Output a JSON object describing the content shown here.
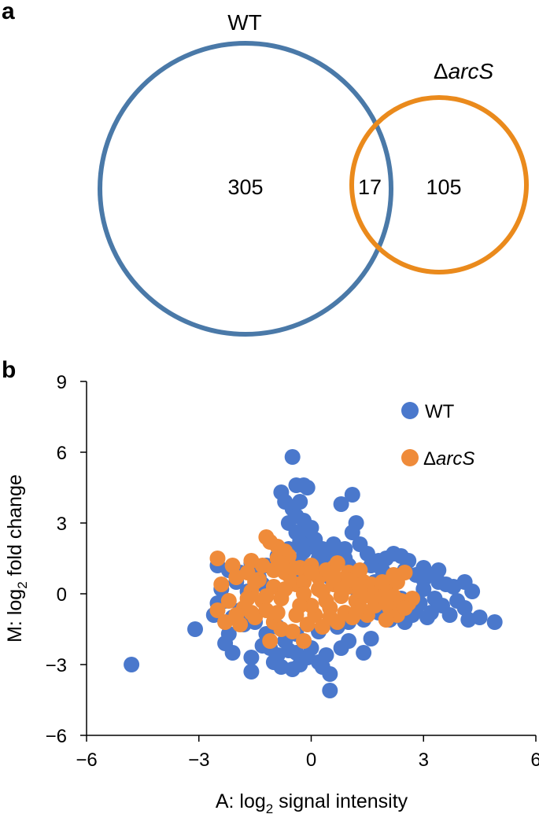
{
  "panel_a": {
    "label": "a",
    "sets": [
      {
        "name": "WT",
        "color": "#4a79a8"
      },
      {
        "name_prefix": "Δ",
        "name_italic": "arcS",
        "color": "#ea8a1c"
      }
    ],
    "only_wt": "305",
    "overlap": "17",
    "only_arcs": "105"
  },
  "panel_b": {
    "label": "b"
  },
  "chart_data": {
    "type": "scatter",
    "title": "",
    "xlabel_main": "A: log",
    "xlabel_sub": "2",
    "xlabel_rest": " signal intensity",
    "ylabel_main": "M: log",
    "ylabel_sub": "2",
    "ylabel_rest": " fold change",
    "xlim": [
      -6,
      6
    ],
    "ylim": [
      -6,
      9
    ],
    "xticks": [
      -6,
      -3,
      0,
      3,
      6
    ],
    "xtick_labels": [
      "−6",
      "−3",
      "0",
      "3",
      "6"
    ],
    "yticks": [
      -6,
      -3,
      0,
      3,
      6,
      9
    ],
    "ytick_labels": [
      "−6",
      "−3",
      "0",
      "3",
      "6",
      "9"
    ],
    "legend": "top-right",
    "series": [
      {
        "name": "WT",
        "color": "#4a78cc",
        "points": [
          [
            -4.8,
            -3.0
          ],
          [
            -3.1,
            -1.5
          ],
          [
            -2.5,
            1.2
          ],
          [
            -2.3,
            -2.1
          ],
          [
            -2.2,
            -1.7
          ],
          [
            -2.1,
            -2.5
          ],
          [
            -1.9,
            0.9
          ],
          [
            -1.8,
            -1.3
          ],
          [
            -1.6,
            -2.7
          ],
          [
            -1.6,
            -3.3
          ],
          [
            -1.4,
            0.7
          ],
          [
            -1.3,
            -2.2
          ],
          [
            -1.2,
            -1.7
          ],
          [
            -1.1,
            -2.3
          ],
          [
            -1.0,
            -2.9
          ],
          [
            -0.9,
            -2.6
          ],
          [
            -0.8,
            -3.1
          ],
          [
            -0.7,
            -2.0
          ],
          [
            -0.6,
            -2.4
          ],
          [
            -0.5,
            -3.2
          ],
          [
            -0.4,
            -2.5
          ],
          [
            -0.3,
            -3.0
          ],
          [
            -0.2,
            -2.0
          ],
          [
            -0.1,
            -2.7
          ],
          [
            0.0,
            -2.3
          ],
          [
            0.2,
            -2.9
          ],
          [
            0.3,
            -3.1
          ],
          [
            0.5,
            -3.4
          ],
          [
            0.5,
            -4.1
          ],
          [
            0.4,
            -2.6
          ],
          [
            0.8,
            -2.3
          ],
          [
            1.0,
            -2.0
          ],
          [
            1.4,
            -2.5
          ],
          [
            1.6,
            -1.9
          ],
          [
            -0.5,
            5.8
          ],
          [
            -0.4,
            4.6
          ],
          [
            -0.2,
            4.6
          ],
          [
            -0.1,
            4.5
          ],
          [
            -0.8,
            4.3
          ],
          [
            -0.7,
            3.9
          ],
          [
            -0.3,
            3.9
          ],
          [
            -0.5,
            3.6
          ],
          [
            -0.4,
            3.3
          ],
          [
            -0.2,
            3.1
          ],
          [
            -0.6,
            3.0
          ],
          [
            0.0,
            2.8
          ],
          [
            -0.4,
            2.6
          ],
          [
            -0.1,
            2.5
          ],
          [
            0.1,
            2.3
          ],
          [
            -0.3,
            2.2
          ],
          [
            0.0,
            2.0
          ],
          [
            1.1,
            4.2
          ],
          [
            0.8,
            3.8
          ],
          [
            1.2,
            3.0
          ],
          [
            1.1,
            2.6
          ],
          [
            1.3,
            2.1
          ],
          [
            0.9,
            1.9
          ],
          [
            1.5,
            1.7
          ],
          [
            0.6,
            1.6
          ],
          [
            0.2,
            1.5
          ],
          [
            0.6,
            2.1
          ],
          [
            0.3,
            1.9
          ],
          [
            -0.2,
            1.8
          ],
          [
            -0.6,
            1.9
          ],
          [
            -0.9,
            1.6
          ],
          [
            -1.2,
            1.2
          ],
          [
            -1.5,
            1.0
          ],
          [
            -2.0,
            0.5
          ],
          [
            -2.4,
            0.2
          ],
          [
            -2.5,
            -0.4
          ],
          [
            -2.6,
            -0.9
          ],
          [
            -2.1,
            -1.0
          ],
          [
            -1.7,
            0.1
          ],
          [
            -1.3,
            0.4
          ],
          [
            -0.5,
            0.8
          ],
          [
            0.5,
            0.7
          ],
          [
            1.0,
            1.2
          ],
          [
            1.6,
            1.2
          ],
          [
            1.8,
            1.4
          ],
          [
            2.0,
            1.5
          ],
          [
            2.2,
            1.7
          ],
          [
            2.4,
            1.6
          ],
          [
            2.6,
            1.4
          ],
          [
            2.5,
            1.0
          ],
          [
            2.8,
            0.8
          ],
          [
            3.0,
            0.6
          ],
          [
            3.2,
            0.8
          ],
          [
            3.4,
            0.5
          ],
          [
            3.0,
            0.2
          ],
          [
            3.6,
            0.4
          ],
          [
            3.8,
            0.3
          ],
          [
            4.1,
            0.5
          ],
          [
            4.3,
            0.1
          ],
          [
            3.3,
            -0.2
          ],
          [
            3.5,
            -0.5
          ],
          [
            3.9,
            -0.3
          ],
          [
            4.1,
            -0.6
          ],
          [
            4.2,
            -1.1
          ],
          [
            3.7,
            -0.9
          ],
          [
            3.2,
            -0.8
          ],
          [
            2.9,
            -0.4
          ],
          [
            2.7,
            -0.9
          ],
          [
            2.4,
            -0.2
          ],
          [
            2.2,
            -0.5
          ],
          [
            2.0,
            -0.1
          ],
          [
            1.8,
            -0.8
          ],
          [
            2.1,
            -1.1
          ],
          [
            2.5,
            -1.2
          ],
          [
            2.8,
            -0.6
          ],
          [
            3.1,
            -1.0
          ],
          [
            4.9,
            -1.2
          ],
          [
            4.5,
            -1.0
          ],
          [
            3.4,
            1.0
          ],
          [
            3.0,
            1.1
          ],
          [
            2.0,
            0.8
          ],
          [
            1.7,
            0.5
          ],
          [
            1.2,
            0.2
          ],
          [
            1.4,
            -1.1
          ],
          [
            1.0,
            -1.2
          ],
          [
            0.7,
            -1.4
          ],
          [
            0.2,
            -1.6
          ],
          [
            -0.4,
            -1.7
          ],
          [
            -0.9,
            -1.4
          ],
          [
            -1.5,
            -1.2
          ],
          [
            -1.9,
            -0.7
          ],
          [
            -2.3,
            -0.3
          ],
          [
            -2.2,
            1.0
          ],
          [
            -1.6,
            1.3
          ],
          [
            0.3,
            1.3
          ],
          [
            -0.3,
            1.4
          ],
          [
            0.9,
            1.5
          ],
          [
            1.9,
            1.0
          ]
        ]
      },
      {
        "name_prefix": "Δ",
        "name_italic": "arcS",
        "color": "#ef8b3a",
        "points": [
          [
            -2.5,
            -0.7
          ],
          [
            -2.5,
            1.5
          ],
          [
            -2.3,
            -1.2
          ],
          [
            -2.1,
            1.2
          ],
          [
            -1.9,
            -1.3
          ],
          [
            -1.7,
            0.9
          ],
          [
            -1.6,
            1.4
          ],
          [
            -1.5,
            -1.0
          ],
          [
            -1.3,
            -0.3
          ],
          [
            -1.3,
            1.2
          ],
          [
            -1.2,
            2.4
          ],
          [
            -1.1,
            -2.0
          ],
          [
            -1.0,
            -1.2
          ],
          [
            -0.9,
            1.5
          ],
          [
            -0.8,
            -1.5
          ],
          [
            -0.7,
            0.9
          ],
          [
            -0.6,
            1.6
          ],
          [
            -0.5,
            -1.6
          ],
          [
            -0.4,
            0.4
          ],
          [
            -0.3,
            1.1
          ],
          [
            -0.2,
            -2.0
          ],
          [
            -0.1,
            -1.3
          ],
          [
            0.0,
            1.2
          ],
          [
            0.1,
            -0.9
          ],
          [
            0.2,
            0.7
          ],
          [
            0.3,
            -1.4
          ],
          [
            0.4,
            1.0
          ],
          [
            0.5,
            -0.6
          ],
          [
            0.6,
            1.1
          ],
          [
            0.7,
            -1.2
          ],
          [
            0.8,
            0.6
          ],
          [
            0.9,
            -0.8
          ],
          [
            1.0,
            0.9
          ],
          [
            1.1,
            -1.0
          ],
          [
            1.2,
            0.7
          ],
          [
            1.3,
            -0.6
          ],
          [
            1.4,
            0.5
          ],
          [
            1.5,
            -0.9
          ],
          [
            1.6,
            0.4
          ],
          [
            1.7,
            -0.5
          ],
          [
            1.8,
            0.3
          ],
          [
            1.9,
            -0.2
          ],
          [
            2.0,
            0.2
          ],
          [
            2.1,
            -0.6
          ],
          [
            2.2,
            -0.1
          ],
          [
            2.3,
            -0.9
          ],
          [
            2.4,
            -0.3
          ],
          [
            2.5,
            0.9
          ],
          [
            2.6,
            -0.4
          ],
          [
            2.7,
            -0.2
          ],
          [
            -2.4,
            0.4
          ],
          [
            -2.2,
            -0.3
          ],
          [
            -2.0,
            0.7
          ],
          [
            -1.8,
            -0.6
          ],
          [
            -1.6,
            0.1
          ],
          [
            -1.4,
            0.6
          ],
          [
            -1.2,
            -0.7
          ],
          [
            -1.0,
            0.3
          ],
          [
            -0.8,
            -0.2
          ],
          [
            -0.6,
            0.8
          ],
          [
            -0.4,
            -0.9
          ],
          [
            -0.2,
            0.5
          ],
          [
            0.0,
            -0.5
          ],
          [
            0.2,
            0.2
          ],
          [
            0.4,
            -0.3
          ],
          [
            0.6,
            0.4
          ],
          [
            0.8,
            -0.1
          ],
          [
            1.0,
            0.3
          ],
          [
            1.2,
            -0.3
          ],
          [
            1.4,
            -0.1
          ],
          [
            1.6,
            0.0
          ],
          [
            1.8,
            -0.3
          ],
          [
            -2.0,
            -0.9
          ],
          [
            -1.5,
            0.5
          ],
          [
            -1.0,
            1.0
          ],
          [
            -0.5,
            1.1
          ],
          [
            0.0,
            0.9
          ],
          [
            0.5,
            0.8
          ],
          [
            1.0,
            0.6
          ],
          [
            1.5,
            0.3
          ],
          [
            2.0,
            -0.4
          ],
          [
            2.5,
            -0.6
          ],
          [
            -1.1,
            2.2
          ],
          [
            -0.9,
            2.0
          ],
          [
            -0.7,
            1.8
          ],
          [
            -1.7,
            -0.2
          ],
          [
            -1.2,
            -0.1
          ],
          [
            -0.7,
            0.2
          ],
          [
            -0.2,
            0.0
          ],
          [
            0.3,
            0.1
          ],
          [
            0.8,
            0.2
          ],
          [
            1.3,
            0.1
          ],
          [
            1.9,
            0.5
          ],
          [
            2.3,
            0.5
          ],
          [
            -1.6,
            -0.8
          ],
          [
            -0.9,
            -0.8
          ],
          [
            -0.3,
            -0.5
          ],
          [
            0.5,
            -1.0
          ],
          [
            1.2,
            -0.8
          ],
          [
            2.0,
            -1.1
          ],
          [
            -0.8,
            1.3
          ],
          [
            0.7,
            1.3
          ],
          [
            1.3,
            1.0
          ],
          [
            2.2,
            0.8
          ]
        ]
      }
    ]
  }
}
